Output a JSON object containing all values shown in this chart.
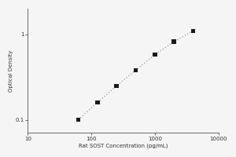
{
  "title": "",
  "xlabel": "Rat SOST Concentration (pg/mL)",
  "ylabel": "Optical Density",
  "x_data": [
    62.5,
    125,
    250,
    500,
    1000,
    2000,
    4000
  ],
  "y_data": [
    0.1,
    0.16,
    0.25,
    0.38,
    0.58,
    0.82,
    1.1
  ],
  "xlim": [
    10,
    10000
  ],
  "ylim": [
    0.07,
    2.0
  ],
  "x_ticks": [
    10,
    100,
    1000,
    10000
  ],
  "x_tick_labels": [
    "10",
    "100",
    "1000",
    "10000"
  ],
  "y_ticks": [
    0.1,
    1.0
  ],
  "y_tick_labels": [
    "0.1",
    "1"
  ],
  "line_color": "#aaaaaa",
  "marker_color": "#1a1a1a",
  "background_color": "#f5f5f5",
  "marker_size": 4,
  "line_style": ":",
  "line_width": 1.0,
  "tick_fontsize": 5,
  "label_fontsize": 5,
  "spine_color": "#333333",
  "tick_color": "#333333"
}
